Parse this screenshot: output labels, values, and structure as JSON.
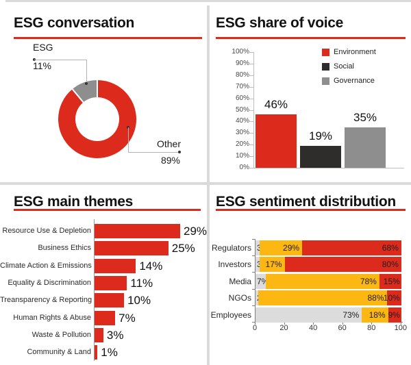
{
  "colors": {
    "red": "#dc2b1c",
    "dark": "#2e2d2c",
    "gray": "#8e8e8e",
    "light_gray": "#dcdcdc",
    "yellow": "#fcb713",
    "divider": "#dadada"
  },
  "chart_data": [
    {
      "id": "esg-conversation",
      "type": "pie",
      "donut": true,
      "title": "ESG conversation",
      "slices": [
        {
          "label": "Other",
          "value": 89,
          "value_label": "89%",
          "color": "#dc2b1c"
        },
        {
          "label": "ESG",
          "value": 11,
          "value_label": "11%",
          "color": "#8e8e8e"
        }
      ],
      "callouts": {
        "esg": {
          "label": "ESG",
          "value": "11%"
        },
        "other": {
          "label": "Other",
          "value": "89%"
        }
      }
    },
    {
      "id": "esg-share-of-voice",
      "type": "bar",
      "title": "ESG share of voice",
      "categories": [
        "Environment",
        "Social",
        "Governance"
      ],
      "values": [
        46,
        19,
        35
      ],
      "value_labels": [
        "46%",
        "19%",
        "35%"
      ],
      "bar_colors": [
        "#dc2b1c",
        "#2e2d2c",
        "#8e8e8e"
      ],
      "ylim": [
        0,
        100
      ],
      "ytick_labels": [
        "0%",
        "10%",
        "20%",
        "30%",
        "40%",
        "50%",
        "60%",
        "70%",
        "80%",
        "90%",
        "100%"
      ],
      "grid": false,
      "legend_position": "top-right",
      "legend": [
        {
          "label": "Environment",
          "color": "#dc2b1c"
        },
        {
          "label": "Social",
          "color": "#2e2d2c"
        },
        {
          "label": "Governance",
          "color": "#8e8e8e"
        }
      ]
    },
    {
      "id": "esg-main-themes",
      "type": "bar",
      "orientation": "horizontal",
      "title": "ESG main themes",
      "categories": [
        "Resource Use & Depletion",
        "Business Ethics",
        "Climate Action & Emissions",
        "Equality & Discrimination",
        "Treansparency & Reporting",
        "Human Rights & Abuse",
        "Waste & Pollution",
        "Community & Land"
      ],
      "values": [
        29,
        25,
        14,
        11,
        10,
        7,
        3,
        1
      ],
      "value_labels": [
        "29%",
        "25%",
        "14%",
        "11%",
        "10%",
        "7%",
        "3%",
        "1%"
      ],
      "bar_color": "#dc2b1c",
      "xlim": [
        0,
        31
      ]
    },
    {
      "id": "esg-sentiment-distribution",
      "type": "bar",
      "orientation": "horizontal",
      "stacked": true,
      "title": "ESG sentiment distribution",
      "categories": [
        "Regulators",
        "Investors",
        "Media",
        "NGOs",
        "Employees"
      ],
      "series": [
        {
          "color": "#dcdcdc",
          "values": [
            3,
            3,
            7,
            2,
            73
          ],
          "value_labels": [
            "3%",
            "3%",
            "7%",
            "2%",
            "73%"
          ]
        },
        {
          "color": "#fcb713",
          "values": [
            29,
            17,
            78,
            88,
            18
          ],
          "value_labels": [
            "29%",
            "17%",
            "78%",
            "88%",
            "18%"
          ]
        },
        {
          "color": "#dc2b1c",
          "values": [
            68,
            80,
            15,
            10,
            9
          ],
          "value_labels": [
            "68%",
            "80%",
            "15%",
            "10%",
            "9%"
          ]
        }
      ],
      "xlim": [
        0,
        100
      ],
      "xtick_labels": [
        "0",
        "20",
        "40",
        "60",
        "80",
        "100"
      ]
    }
  ]
}
